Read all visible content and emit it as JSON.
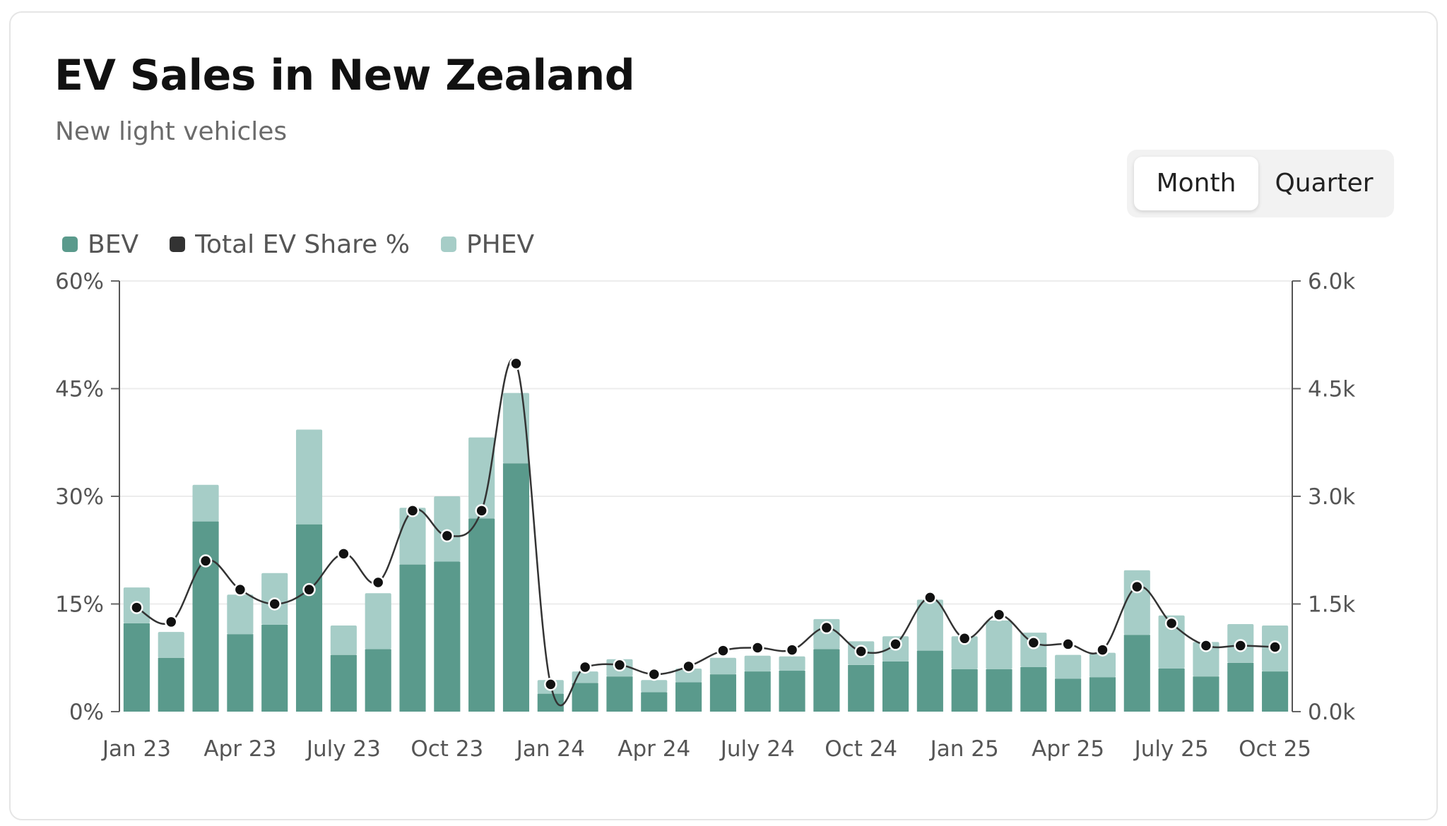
{
  "header": {
    "title": "EV Sales in New Zealand",
    "subtitle": "New light vehicles"
  },
  "toggle": {
    "month_label": "Month",
    "quarter_label": "Quarter",
    "selected": "Month"
  },
  "legend": {
    "items": [
      {
        "label": "BEV",
        "color": "#5a9a8c"
      },
      {
        "label": "Total EV Share %",
        "color": "#333333"
      },
      {
        "label": "PHEV",
        "color": "#a6cdc7"
      }
    ]
  },
  "chart_data": {
    "type": "bar",
    "stacked": true,
    "grid": true,
    "legend_position": "top-left",
    "x": [
      "2023-01",
      "2023-02",
      "2023-03",
      "2023-04",
      "2023-05",
      "2023-06",
      "2023-07",
      "2023-08",
      "2023-09",
      "2023-10",
      "2023-11",
      "2023-12",
      "2024-01",
      "2024-02",
      "2024-03",
      "2024-04",
      "2024-05",
      "2024-06",
      "2024-07",
      "2024-08",
      "2024-09",
      "2024-10",
      "2024-11",
      "2024-12",
      "2025-01",
      "2025-02",
      "2025-03",
      "2025-04",
      "2025-05",
      "2025-06",
      "2025-07",
      "2025-08",
      "2025-09",
      "2025-10"
    ],
    "x_tick_labels": [
      "Jan 23",
      "Apr 23",
      "July 23",
      "Oct 23",
      "Jan 24",
      "Apr 24",
      "July 24",
      "Oct 24",
      "Jan 25",
      "Apr 25",
      "July 25",
      "Oct 25"
    ],
    "x_tick_positions": [
      "2023-01",
      "2023-04",
      "2023-07",
      "2023-10",
      "2024-01",
      "2024-04",
      "2024-07",
      "2024-10",
      "2025-01",
      "2025-04",
      "2025-07",
      "2025-10"
    ],
    "y_left": {
      "min": 0,
      "max": 60,
      "ticks": [
        "0%",
        "15%",
        "30%",
        "45%",
        "60%"
      ]
    },
    "y_right": {
      "min": 0,
      "max": 6000,
      "ticks": [
        "0.0k",
        "1.5k",
        "3.0k",
        "4.5k",
        "6.0k"
      ]
    },
    "series": [
      {
        "name": "BEV",
        "type": "bar",
        "axis": "right",
        "color": "#5a9a8c",
        "values": [
          1230,
          750,
          2650,
          1080,
          1210,
          2610,
          790,
          870,
          2050,
          2090,
          2690,
          3460,
          250,
          400,
          490,
          270,
          410,
          520,
          560,
          570,
          870,
          650,
          700,
          850,
          590,
          590,
          620,
          460,
          480,
          1070,
          600,
          490,
          680,
          560
        ]
      },
      {
        "name": "PHEV",
        "type": "bar",
        "axis": "right",
        "color": "#a6cdc7",
        "values": [
          500,
          360,
          510,
          550,
          720,
          1320,
          410,
          780,
          790,
          910,
          1130,
          980,
          190,
          160,
          240,
          170,
          190,
          230,
          220,
          200,
          420,
          330,
          350,
          710,
          460,
          680,
          480,
          330,
          340,
          900,
          740,
          480,
          540,
          640
        ]
      },
      {
        "name": "Total EV Share %",
        "type": "line",
        "axis": "left",
        "color": "#333333",
        "values": [
          14.5,
          12.5,
          21.0,
          17.0,
          15.0,
          17.0,
          22.0,
          18.0,
          28.0,
          24.5,
          28.0,
          48.5,
          3.8,
          6.2,
          6.5,
          5.2,
          6.3,
          8.5,
          8.9,
          8.6,
          11.7,
          8.4,
          9.4,
          15.9,
          10.2,
          13.5,
          9.6,
          9.4,
          8.6,
          17.4,
          12.3,
          9.2,
          9.2,
          9.0
        ]
      }
    ]
  }
}
